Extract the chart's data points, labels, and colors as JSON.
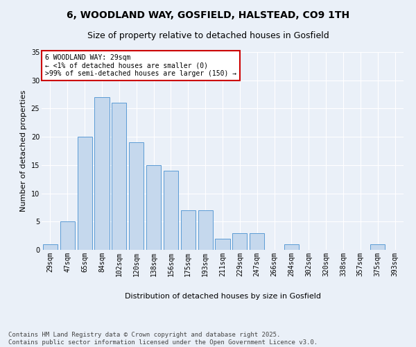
{
  "title1": "6, WOODLAND WAY, GOSFIELD, HALSTEAD, CO9 1TH",
  "title2": "Size of property relative to detached houses in Gosfield",
  "xlabel": "Distribution of detached houses by size in Gosfield",
  "ylabel": "Number of detached properties",
  "categories": [
    "29sqm",
    "47sqm",
    "65sqm",
    "84sqm",
    "102sqm",
    "120sqm",
    "138sqm",
    "156sqm",
    "175sqm",
    "193sqm",
    "211sqm",
    "229sqm",
    "247sqm",
    "266sqm",
    "284sqm",
    "302sqm",
    "320sqm",
    "338sqm",
    "357sqm",
    "375sqm",
    "393sqm"
  ],
  "values": [
    1,
    5,
    20,
    27,
    26,
    19,
    15,
    14,
    7,
    7,
    2,
    3,
    3,
    0,
    1,
    0,
    0,
    0,
    0,
    1,
    0
  ],
  "bar_color": "#c5d8ed",
  "bar_edge_color": "#5b9bd5",
  "annotation_text": "6 WOODLAND WAY: 29sqm\n← <1% of detached houses are smaller (0)\n>99% of semi-detached houses are larger (150) →",
  "annotation_box_color": "#ffffff",
  "annotation_box_edge_color": "#cc0000",
  "bg_color": "#eaf0f8",
  "plot_bg_color": "#eaf0f8",
  "grid_color": "#ffffff",
  "ylim": [
    0,
    35
  ],
  "yticks": [
    0,
    5,
    10,
    15,
    20,
    25,
    30,
    35
  ],
  "footer_text": "Contains HM Land Registry data © Crown copyright and database right 2025.\nContains public sector information licensed under the Open Government Licence v3.0.",
  "title_fontsize": 10,
  "subtitle_fontsize": 9,
  "axis_label_fontsize": 8,
  "tick_fontsize": 7,
  "annotation_fontsize": 7,
  "footer_fontsize": 6.5
}
